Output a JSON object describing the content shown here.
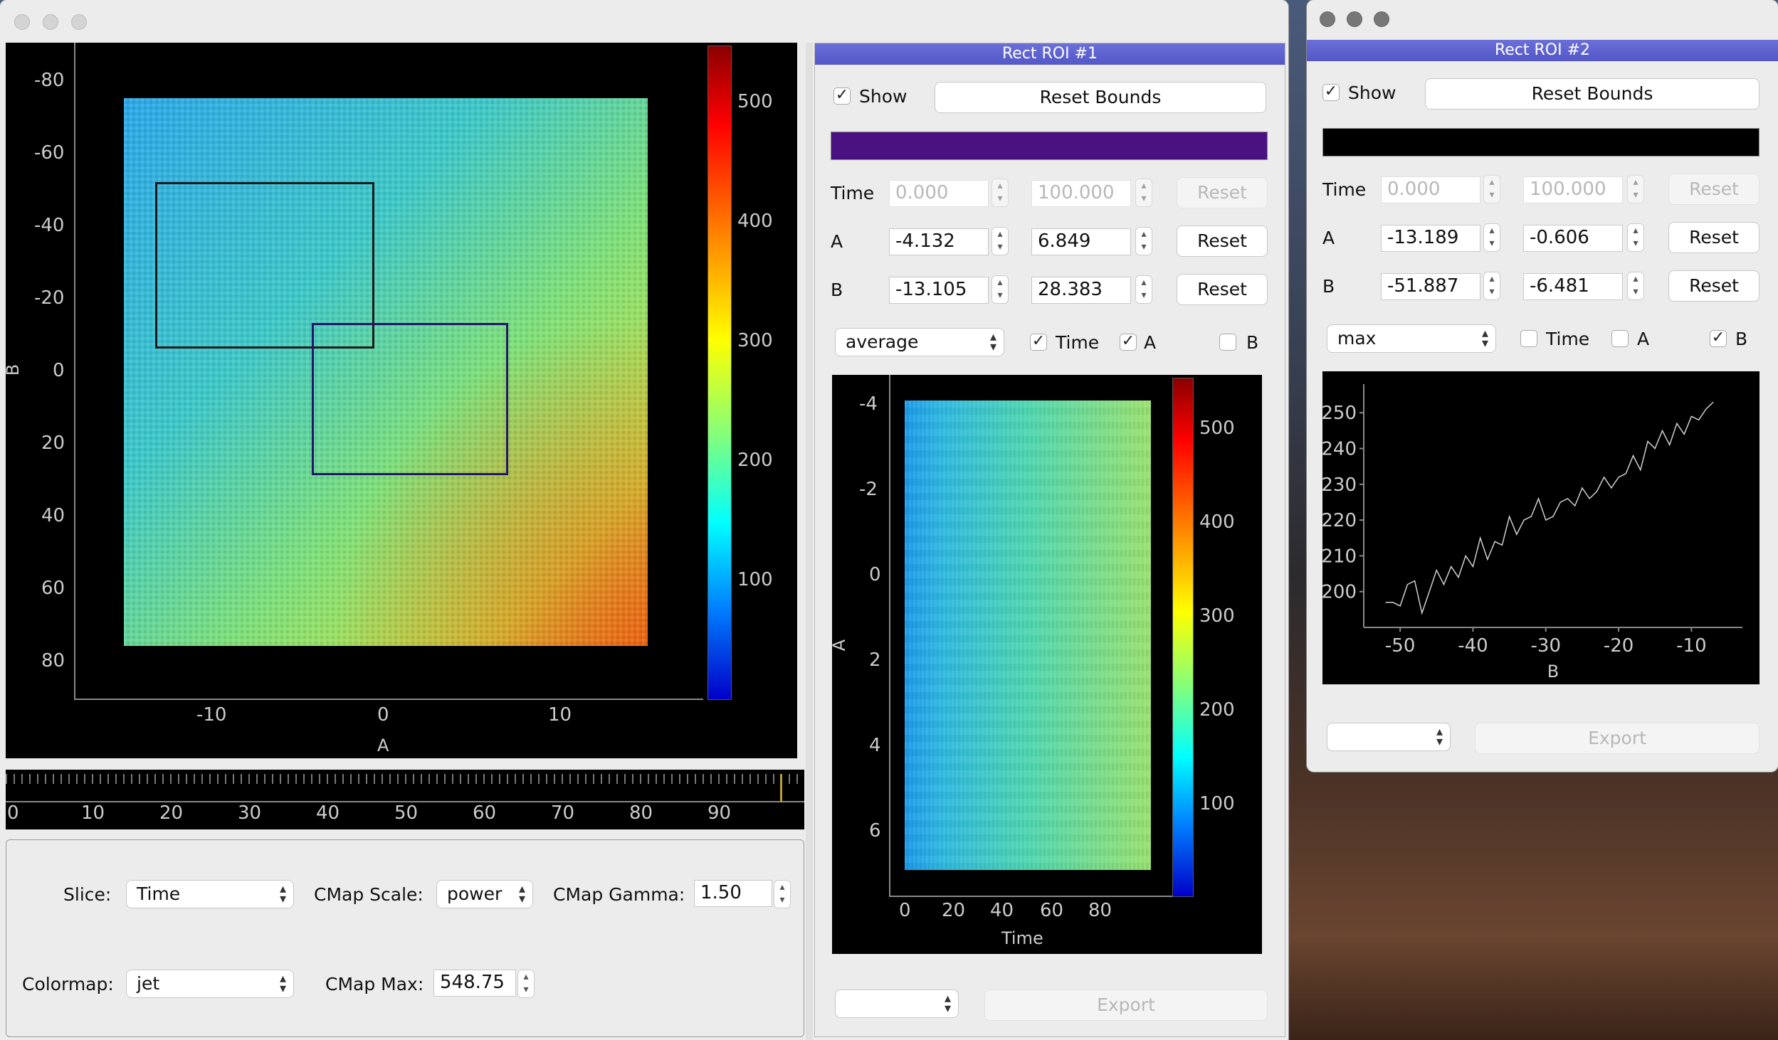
{
  "main_window": {
    "image_plot": {
      "y_ticks": [
        "-80",
        "-60",
        "-40",
        "-20",
        "0",
        "20",
        "40",
        "60",
        "80"
      ],
      "x_ticks": [
        "-10",
        "0",
        "10"
      ],
      "x_label": "A",
      "y_label": "B",
      "colorbar_ticks": [
        "500",
        "400",
        "300",
        "200",
        "100"
      ]
    },
    "time_slider": {
      "ticks": [
        "0",
        "10",
        "20",
        "30",
        "40",
        "50",
        "60",
        "70",
        "80",
        "90"
      ],
      "position": 0.97
    },
    "controls": {
      "slice_label": "Slice:",
      "slice_value": "Time",
      "cmap_scale_label": "CMap Scale:",
      "cmap_scale_value": "power",
      "cmap_gamma_label": "CMap Gamma:",
      "cmap_gamma_value": "1.50",
      "colormap_label": "Colormap:",
      "colormap_value": "jet",
      "cmap_max_label": "CMap Max:",
      "cmap_max_value": "548.75"
    },
    "roi1": {
      "title": "Rect ROI #1",
      "show_label": "Show",
      "show_checked": true,
      "reset_bounds_label": "Reset Bounds",
      "color": "#4a1280",
      "rows": [
        {
          "label": "Time",
          "min": "0.000",
          "max": "100.000",
          "reset": "Reset",
          "enabled": false
        },
        {
          "label": "A",
          "min": "-4.132",
          "max": "6.849",
          "reset": "Reset",
          "enabled": true
        },
        {
          "label": "B",
          "min": "-13.105",
          "max": "28.383",
          "reset": "Reset",
          "enabled": true
        }
      ],
      "reduce_value": "average",
      "checks": [
        {
          "label": "Time",
          "checked": true
        },
        {
          "label": "A",
          "checked": true
        },
        {
          "label": "B",
          "checked": false
        }
      ],
      "plot": {
        "y_ticks": [
          "-4",
          "-2",
          "0",
          "2",
          "4",
          "6"
        ],
        "x_ticks": [
          "0",
          "20",
          "40",
          "60",
          "80"
        ],
        "x_label": "Time",
        "y_label": "A",
        "colorbar_ticks": [
          "500",
          "400",
          "300",
          "200",
          "100"
        ]
      },
      "export_label": "Export"
    }
  },
  "roi2_window": {
    "title": "Rect ROI #2",
    "show_label": "Show",
    "show_checked": true,
    "reset_bounds_label": "Reset Bounds",
    "color": "#000000",
    "rows": [
      {
        "label": "Time",
        "min": "0.000",
        "max": "100.000",
        "reset": "Reset",
        "enabled": false
      },
      {
        "label": "A",
        "min": "-13.189",
        "max": "-0.606",
        "reset": "Reset",
        "enabled": true
      },
      {
        "label": "B",
        "min": "-51.887",
        "max": "-6.481",
        "reset": "Reset",
        "enabled": true
      }
    ],
    "reduce_value": "max",
    "checks": [
      {
        "label": "Time",
        "checked": false
      },
      {
        "label": "A",
        "checked": false
      },
      {
        "label": "B",
        "checked": true
      }
    ],
    "export_label": "Export"
  },
  "chart_data": {
    "type": "line",
    "xlabel": "B",
    "ylabel": "",
    "xlim": [
      -55,
      -3
    ],
    "ylim": [
      190,
      258
    ],
    "x_ticks": [
      -50,
      -40,
      -30,
      -20,
      -10
    ],
    "y_ticks": [
      200,
      210,
      220,
      230,
      240,
      250
    ],
    "grid": false,
    "series": [
      {
        "x": [
          -52,
          -51,
          -50,
          -49,
          -48,
          -47,
          -46,
          -45,
          -44,
          -43,
          -42,
          -41,
          -40,
          -39,
          -38,
          -37,
          -36,
          -35,
          -34,
          -33,
          -32,
          -31,
          -30,
          -29,
          -28,
          -27,
          -26,
          -25,
          -24,
          -23,
          -22,
          -21,
          -20,
          -19,
          -18,
          -17,
          -16,
          -15,
          -14,
          -13,
          -12,
          -11,
          -10,
          -9,
          -8,
          -7
        ],
        "y": [
          197,
          197,
          196,
          202,
          203,
          194,
          200,
          206,
          202,
          207,
          204,
          210,
          207,
          215,
          209,
          214,
          213,
          221,
          216,
          220,
          221,
          226,
          220,
          221,
          225,
          226,
          224,
          229,
          226,
          228,
          232,
          229,
          232,
          233,
          238,
          234,
          242,
          240,
          245,
          241,
          247,
          244,
          249,
          248,
          251,
          253
        ]
      }
    ]
  }
}
